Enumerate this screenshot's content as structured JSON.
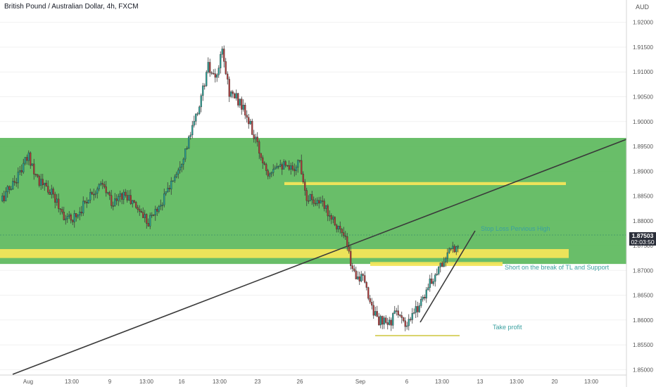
{
  "header": {
    "title": "British Pound / Australian Dollar, 4h, FXCM",
    "currency": "AUD"
  },
  "price_badge": {
    "price": "1.87503",
    "countdown": "02:03:50"
  },
  "annotations": {
    "stop_loss": "Stop Loss Pervious High",
    "short": "Short on the break of TL and Support",
    "take_profit": "Take profit"
  },
  "colors": {
    "zone_green": "#5cb85c",
    "highlight_yellow": "#f3e55a",
    "bull": "#26a69a",
    "bear": "#b83a3a",
    "trendline": "#3a3a3a",
    "annotation_text": "#3aa0a0"
  },
  "chart_data": {
    "type": "candlestick",
    "title": "British Pound / Australian Dollar, 4h, FXCM",
    "ylabel": "AUD",
    "ylim": [
      1.8465,
      1.9245
    ],
    "y_ticks": [
      "1.92000",
      "1.91500",
      "1.91000",
      "1.90500",
      "1.90000",
      "1.89500",
      "1.89000",
      "1.88500",
      "1.88000",
      "1.87500",
      "1.87000",
      "1.86500",
      "1.86000",
      "1.85500",
      "1.85000"
    ],
    "x_ticks": [
      "Aug",
      "13:00",
      "9",
      "13:00",
      "16",
      "13:00",
      "23",
      "26",
      "Sep",
      "6",
      "13:00",
      "13",
      "13:00",
      "20",
      "13:00"
    ],
    "path_points": [
      [
        0,
        1.884
      ],
      [
        8,
        1.888
      ],
      [
        16,
        1.893
      ],
      [
        22,
        1.888
      ],
      [
        30,
        1.885
      ],
      [
        38,
        1.88
      ],
      [
        44,
        1.8815
      ],
      [
        52,
        1.886
      ],
      [
        58,
        1.887
      ],
      [
        64,
        1.8835
      ],
      [
        70,
        1.8855
      ],
      [
        78,
        1.8825
      ],
      [
        84,
        1.88
      ],
      [
        92,
        1.884
      ],
      [
        100,
        1.89
      ],
      [
        106,
        1.895
      ],
      [
        112,
        1.902
      ],
      [
        118,
        1.911
      ],
      [
        122,
        1.908
      ],
      [
        126,
        1.914
      ],
      [
        130,
        1.906
      ],
      [
        136,
        1.904
      ],
      [
        142,
        1.899
      ],
      [
        148,
        1.893
      ],
      [
        152,
        1.89
      ],
      [
        158,
        1.892
      ],
      [
        164,
        1.89
      ],
      [
        170,
        1.892
      ],
      [
        174,
        1.885
      ],
      [
        180,
        1.884
      ],
      [
        186,
        1.882
      ],
      [
        190,
        1.88
      ],
      [
        196,
        1.876
      ],
      [
        200,
        1.87
      ],
      [
        206,
        1.868
      ],
      [
        210,
        1.864
      ],
      [
        214,
        1.86
      ],
      [
        220,
        1.859
      ],
      [
        226,
        1.862
      ],
      [
        230,
        1.858
      ],
      [
        236,
        1.862
      ],
      [
        242,
        1.866
      ],
      [
        248,
        1.87
      ],
      [
        254,
        1.873
      ],
      [
        260,
        1.8755
      ]
    ],
    "total_bars": 260,
    "zones": [
      {
        "name": "green-zone",
        "from": 1.8713,
        "to": 1.8967
      },
      {
        "name": "support-line",
        "from": 1.8725,
        "to": 1.8743
      },
      {
        "name": "stop-loss-line",
        "from": 1.8872,
        "to": 1.8878
      },
      {
        "name": "short-line",
        "from": 1.8709,
        "to": 1.8717
      },
      {
        "name": "take-profit-line",
        "from": 1.8568,
        "to": 1.857
      }
    ]
  }
}
